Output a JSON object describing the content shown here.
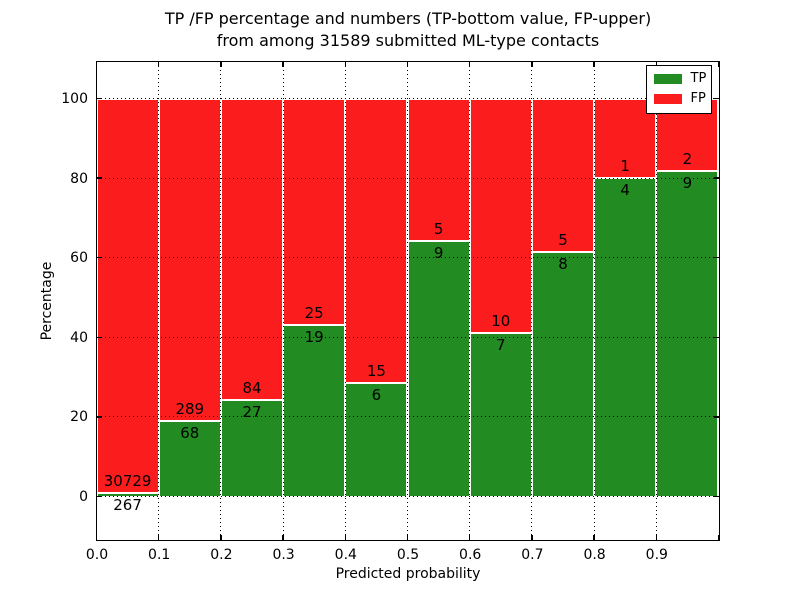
{
  "figure": {
    "title_line1": "TP /FP percentage and numbers (TP-bottom value, FP-upper)",
    "title_line2": "from among 31589 submitted ML-type contacts"
  },
  "chart_data": {
    "type": "bar",
    "stacked": true,
    "orientation": "vertical",
    "title": "TP /FP percentage and numbers (TP-bottom value, FP-upper) from among 31589 submitted ML-type contacts",
    "total_submitted_contacts": 31589,
    "xlabel": "Predicted probability",
    "ylabel": "Percentage",
    "bins": [
      "0.0-0.1",
      "0.1-0.2",
      "0.2-0.3",
      "0.3-0.4",
      "0.4-0.5",
      "0.5-0.6",
      "0.6-0.7",
      "0.7-0.8",
      "0.8-0.9",
      "0.9-1.0"
    ],
    "series": [
      {
        "name": "TP",
        "color": "#228b22",
        "counts": [
          267,
          68,
          27,
          19,
          6,
          9,
          7,
          8,
          4,
          9
        ],
        "percent": [
          0.86,
          19.05,
          24.32,
          43.18,
          28.57,
          64.29,
          41.18,
          61.54,
          80.0,
          81.82
        ]
      },
      {
        "name": "FP",
        "color": "#fb1d1d",
        "counts": [
          30729,
          289,
          84,
          25,
          15,
          5,
          10,
          5,
          1,
          2
        ],
        "percent": [
          99.14,
          80.95,
          75.68,
          56.82,
          71.43,
          35.71,
          58.82,
          38.46,
          20.0,
          18.18
        ]
      }
    ],
    "xticks": [
      "0.0",
      "0.1",
      "0.2",
      "0.3",
      "0.4",
      "0.5",
      "0.6",
      "0.7",
      "0.8",
      "0.9"
    ],
    "yticks": [
      "0",
      "20",
      "40",
      "60",
      "80",
      "100"
    ],
    "xlim": [
      0,
      1
    ],
    "ylim": [
      -10.8,
      109.3
    ],
    "grid": {
      "style": "dotted",
      "color": "#000000"
    },
    "legend": {
      "position": "upper-right",
      "entries": [
        {
          "label": "TP",
          "color": "#228b22"
        },
        {
          "label": "FP",
          "color": "#fb1d1d"
        }
      ]
    }
  }
}
